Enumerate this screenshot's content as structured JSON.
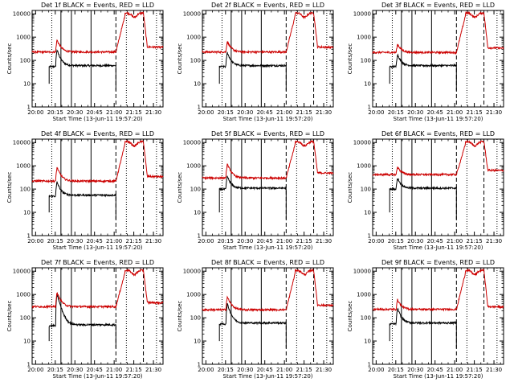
{
  "chart_data": {
    "type": "line",
    "panels": [
      {
        "title": "Det  1f BLACK = Events, RED = LLD",
        "ylabel": "Counts/sec",
        "xlabel": "Start Time (13-Jun-11 19:57:20)",
        "black_base": 60,
        "red_base": 230,
        "black_peak": 280,
        "red_peak": 750,
        "red_after": 380
      },
      {
        "title": "Det  2f BLACK = Events, RED = LLD",
        "ylabel": "Counts/sec",
        "xlabel": "Start Time (13-Jun-11 19:57:20)",
        "black_base": 60,
        "red_base": 230,
        "black_peak": 220,
        "red_peak": 650,
        "red_after": 380
      },
      {
        "title": "Det  3f BLACK = Events, RED = LLD",
        "ylabel": "Counts/sec",
        "xlabel": "Start Time (13-Jun-11 19:57:20)",
        "black_base": 60,
        "red_base": 220,
        "black_peak": 180,
        "red_peak": 500,
        "red_after": 350
      },
      {
        "title": "Det  4f BLACK = Events, RED = LLD",
        "ylabel": "Counts/sec",
        "xlabel": "Start Time (13-Jun-11 19:57:20)",
        "black_base": 55,
        "red_base": 220,
        "black_peak": 200,
        "red_peak": 850,
        "red_after": 350
      },
      {
        "title": "Det  5f BLACK = Events, RED = LLD",
        "ylabel": "Counts/sec",
        "xlabel": "Start Time (13-Jun-11 19:57:20)",
        "black_base": 110,
        "red_base": 300,
        "black_peak": 350,
        "red_peak": 1200,
        "red_after": 500
      },
      {
        "title": "Det  6f BLACK = Events, RED = LLD",
        "ylabel": "Counts/sec",
        "xlabel": "Start Time (13-Jun-11 19:57:20)",
        "black_base": 110,
        "red_base": 420,
        "black_peak": 300,
        "red_peak": 900,
        "red_after": 650
      },
      {
        "title": "Det  7f BLACK = Events, RED = LLD",
        "ylabel": "Counts/sec",
        "xlabel": "Start Time (13-Jun-11 19:57:20)",
        "black_base": 50,
        "red_base": 300,
        "black_peak": 1000,
        "red_peak": 1200,
        "red_after": 450
      },
      {
        "title": "Det  8f BLACK = Events, RED = LLD",
        "ylabel": "Counts/sec",
        "xlabel": "Start Time (13-Jun-11 19:57:20)",
        "black_base": 60,
        "red_base": 220,
        "black_peak": 400,
        "red_peak": 800,
        "red_after": 350
      },
      {
        "title": "Det  9f BLACK = Events, RED = LLD",
        "ylabel": "Counts/sec",
        "xlabel": "Start Time (13-Jun-11 19:57:20)",
        "black_base": 60,
        "red_base": 230,
        "black_peak": 250,
        "red_peak": 600,
        "red_after": 300
      }
    ],
    "x_tick_labels": [
      "20:00",
      "20:15",
      "20:30",
      "20:45",
      "21:00",
      "21:15",
      "21:30"
    ],
    "x_tick_minutes": [
      2.67,
      17.67,
      32.67,
      47.67,
      62.67,
      77.67,
      92.67
    ],
    "x_range_minutes": [
      0,
      100
    ],
    "y_tick_labels": [
      "1",
      "10",
      "100",
      "1000",
      "10000"
    ],
    "y_tick_values": [
      1,
      10,
      100,
      1000,
      10000
    ],
    "y_range": [
      1,
      14000
    ],
    "y_scale": "log",
    "series": [
      {
        "key": "black",
        "color": "#000000"
      },
      {
        "key": "red",
        "color": "#cc0000"
      }
    ],
    "events": {
      "black_start": 13,
      "rise": 18,
      "peak_end": 19,
      "plateau_end": 64,
      "red_rise_start": 64,
      "red_high_start": 71,
      "red_high_end": 85,
      "red_drop": 88
    },
    "vlines": [
      {
        "x": 15,
        "style": "dotted"
      },
      {
        "x": 22,
        "style": "solid"
      },
      {
        "x": 30,
        "style": "solid"
      },
      {
        "x": 45,
        "style": "solid"
      },
      {
        "x": 64,
        "style": "dashed"
      },
      {
        "x": 72,
        "style": "dotted"
      },
      {
        "x": 85,
        "style": "dashed"
      },
      {
        "x": 95,
        "style": "dotted"
      }
    ]
  }
}
